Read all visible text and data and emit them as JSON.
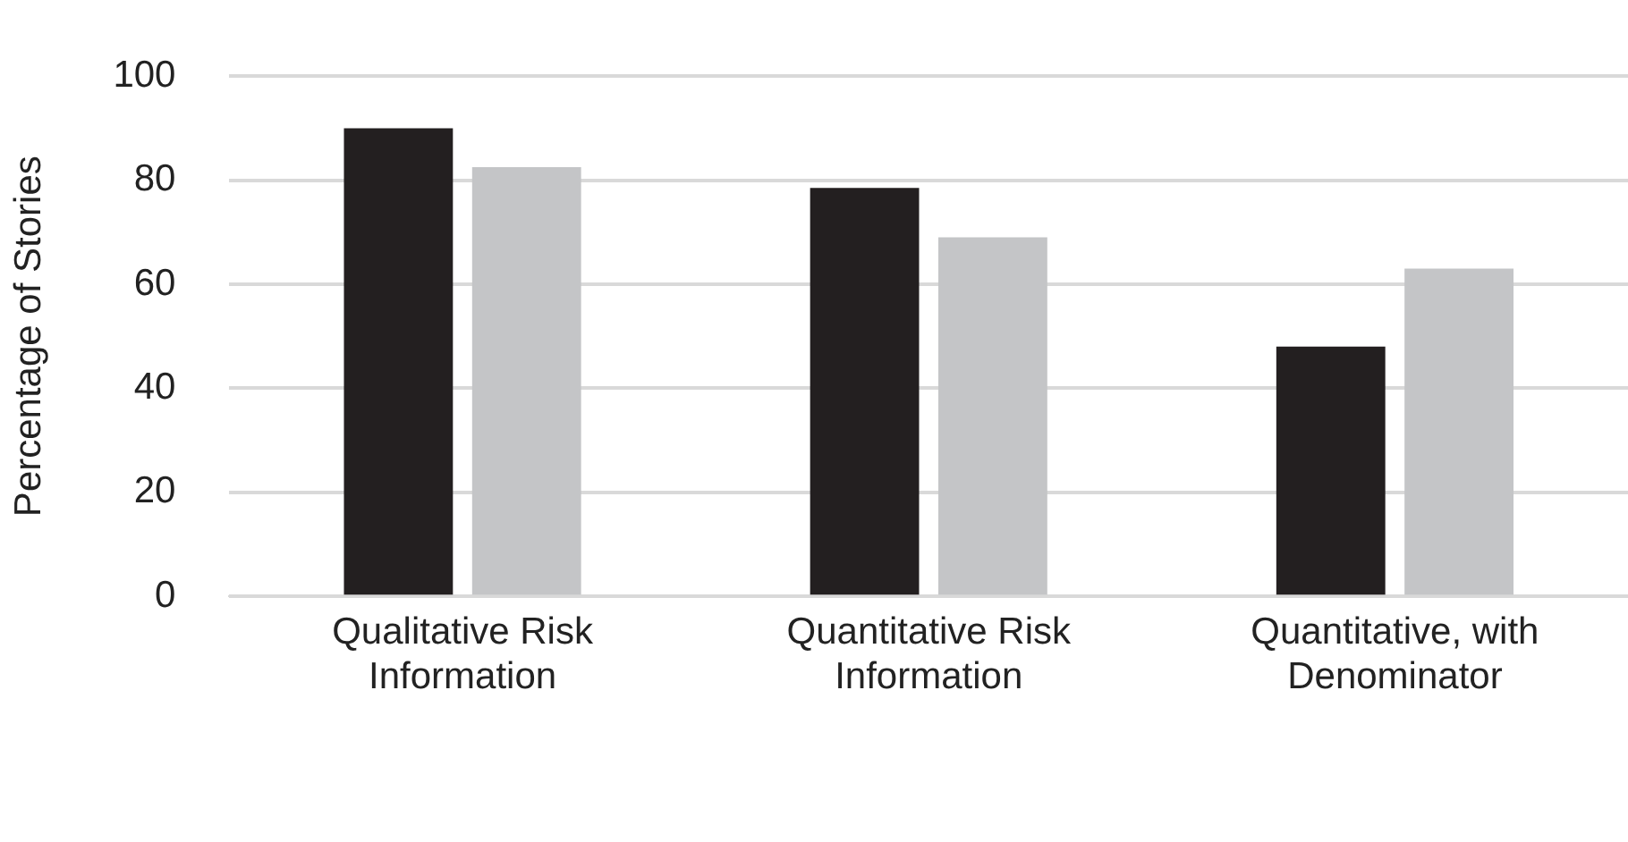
{
  "chart_data": {
    "type": "bar",
    "ylabel": "Percentage of Stories",
    "categories": [
      [
        "Qualitative Risk",
        "Information"
      ],
      [
        "Quantitative Risk",
        "Information"
      ],
      [
        "Quantitative, with",
        "Denominator"
      ]
    ],
    "series": [
      {
        "color": "#231f20",
        "values": [
          90,
          78.5,
          48
        ]
      },
      {
        "color": "#c4c5c7",
        "values": [
          82.5,
          69,
          63
        ]
      }
    ],
    "ylim": [
      0,
      100
    ],
    "yticks": [
      0,
      20,
      40,
      60,
      80,
      100
    ],
    "grid": "y"
  }
}
